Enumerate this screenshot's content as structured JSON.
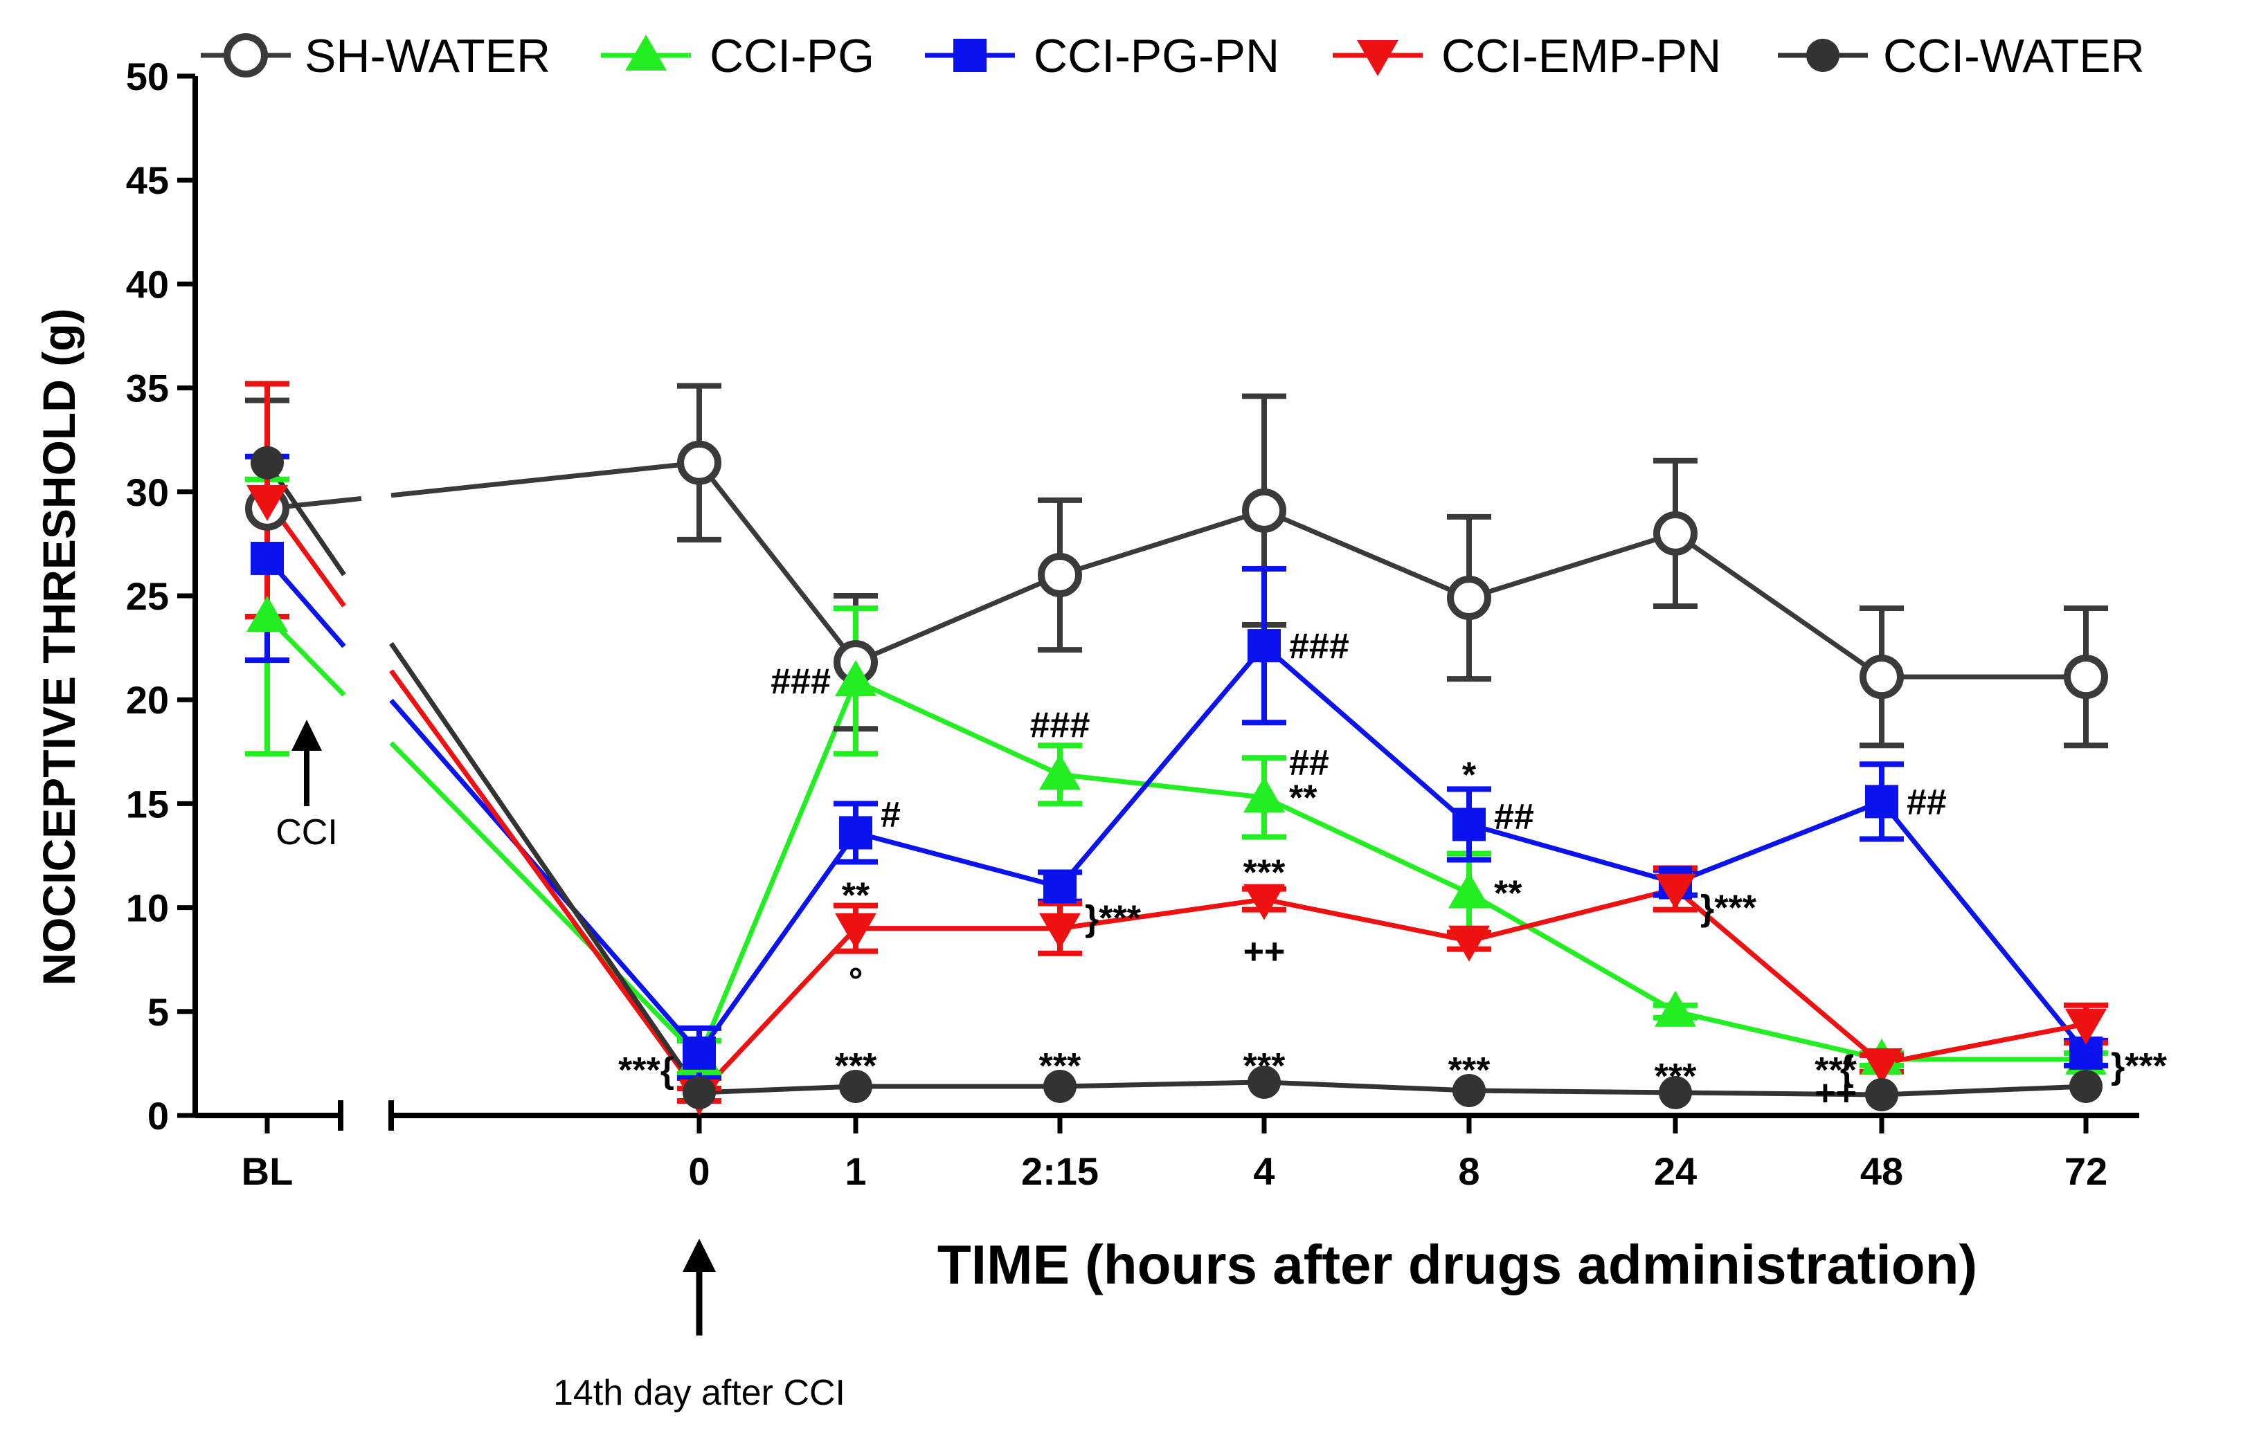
{
  "chart_data": {
    "type": "line",
    "xlabel": "TIME (hours after drugs administration)",
    "ylabel": "NOCICEPTIVE THRESHOLD (g)",
    "ylim": [
      0,
      50
    ],
    "yticks": [
      0,
      5,
      10,
      15,
      20,
      25,
      30,
      35,
      40,
      45,
      50
    ],
    "categories": [
      "BL",
      "0",
      "1",
      "2:15",
      "4",
      "8",
      "24",
      "48",
      "72"
    ],
    "legend_position": "top",
    "grid": false,
    "series": [
      {
        "name": "SH-WATER",
        "color": "#3a3a3a",
        "marker": "circle-open",
        "values": [
          29.2,
          31.4,
          21.8,
          26.0,
          29.1,
          24.9,
          28.0,
          21.1,
          21.1
        ],
        "errors": [
          5.2,
          3.7,
          3.2,
          3.6,
          5.5,
          3.9,
          3.5,
          3.3,
          3.3
        ]
      },
      {
        "name": "CCI-PG",
        "color": "#22ee22",
        "marker": "triangle-up",
        "values": [
          24.0,
          2.8,
          20.9,
          16.4,
          15.3,
          10.7,
          5.0,
          2.7,
          2.7
        ],
        "errors": [
          6.6,
          0.8,
          3.5,
          1.4,
          1.9,
          1.9,
          0.3,
          0.3,
          0.3
        ]
      },
      {
        "name": "CCI-PG-PN",
        "color": "#0a12ee",
        "marker": "square",
        "values": [
          26.8,
          3.0,
          13.6,
          11.0,
          22.6,
          14.0,
          11.2,
          15.1,
          3.0
        ],
        "errors": [
          4.9,
          1.2,
          1.4,
          0.7,
          3.7,
          1.7,
          0.6,
          1.8,
          0.6
        ]
      },
      {
        "name": "CCI-EMP-PN",
        "color": "#ee1111",
        "marker": "triangle-down",
        "values": [
          29.6,
          1.0,
          9.0,
          9.0,
          10.4,
          8.4,
          10.9,
          2.5,
          4.4
        ],
        "errors": [
          5.6,
          0.3,
          1.1,
          1.2,
          0.5,
          0.4,
          1.0,
          0.4,
          0.9
        ]
      },
      {
        "name": "CCI-WATER",
        "color": "#333333",
        "marker": "circle-filled",
        "values": [
          31.4,
          1.1,
          1.4,
          1.4,
          1.6,
          1.2,
          1.1,
          1.0,
          1.4
        ],
        "errors": [
          0,
          0,
          0,
          0,
          0,
          0,
          0,
          0,
          0
        ]
      }
    ],
    "annotations": [
      {
        "text": "###",
        "x": "1",
        "y": 20.9,
        "side": "left"
      },
      {
        "text": "#",
        "x": "1",
        "y": 14.5,
        "side": "right"
      },
      {
        "text": "**",
        "x": "1",
        "y": 10.6,
        "side": "center"
      },
      {
        "text": "°",
        "x": "1",
        "y": 6.5,
        "side": "center"
      },
      {
        "text": "***",
        "x": "1",
        "y": 2.4,
        "side": "center"
      },
      {
        "text": "###",
        "x": "2:15",
        "y": 18.8,
        "side": "center"
      },
      {
        "text": "}***",
        "x": "2:15",
        "y": 9.5,
        "side": "right"
      },
      {
        "text": "***",
        "x": "2:15",
        "y": 2.4,
        "side": "center"
      },
      {
        "text": "###",
        "x": "4",
        "y": 22.6,
        "side": "right"
      },
      {
        "text": "##",
        "x": "4",
        "y": 17.0,
        "side": "right"
      },
      {
        "text": "**",
        "x": "4",
        "y": 15.3,
        "side": "right"
      },
      {
        "text": "***",
        "x": "4",
        "y": 11.7,
        "side": "center"
      },
      {
        "text": "++",
        "x": "4",
        "y": 7.9,
        "side": "center"
      },
      {
        "text": "***",
        "x": "4",
        "y": 2.4,
        "side": "center"
      },
      {
        "text": "*",
        "x": "8",
        "y": 16.4,
        "side": "center"
      },
      {
        "text": "##",
        "x": "8",
        "y": 14.4,
        "side": "right"
      },
      {
        "text": "**",
        "x": "8",
        "y": 10.7,
        "side": "right"
      },
      {
        "text": "***",
        "x": "8",
        "y": 2.2,
        "side": "center"
      },
      {
        "text": "}***",
        "x": "24",
        "y": 10.0,
        "side": "right"
      },
      {
        "text": "***",
        "x": "24",
        "y": 1.9,
        "side": "center"
      },
      {
        "text": "##",
        "x": "48",
        "y": 15.1,
        "side": "right"
      },
      {
        "text": "***",
        "x": "48",
        "y": 2.2,
        "side": "left"
      },
      {
        "text": "++",
        "x": "48",
        "y": 1.1,
        "side": "left"
      },
      {
        "text": "{",
        "x": "48",
        "y": 2.3,
        "side": "left-brace"
      },
      {
        "text": "}***",
        "x": "72",
        "y": 2.4,
        "side": "right"
      },
      {
        "text": "***{",
        "x": "0",
        "y": 2.2,
        "side": "left"
      }
    ],
    "arrow_notes": [
      {
        "text": "CCI",
        "x": "BL"
      },
      {
        "text": "14th day after CCI",
        "x": "0"
      }
    ]
  }
}
